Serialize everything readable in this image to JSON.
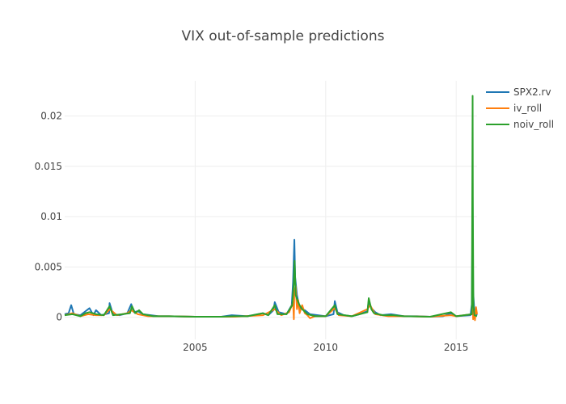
{
  "chart_data": {
    "type": "line",
    "title": "VIX out-of-sample predictions",
    "xlabel": "",
    "ylabel": "",
    "x_range": [
      2000.0,
      2015.8
    ],
    "ylim": [
      -0.0022,
      0.0235
    ],
    "x_ticks": [
      {
        "value": 2005,
        "label": "2005"
      },
      {
        "value": 2010,
        "label": "2010"
      },
      {
        "value": 2015,
        "label": "2015"
      }
    ],
    "y_ticks": [
      {
        "value": 0,
        "label": "0"
      },
      {
        "value": 0.005,
        "label": "0.005"
      },
      {
        "value": 0.01,
        "label": "0.01"
      },
      {
        "value": 0.015,
        "label": "0.015"
      },
      {
        "value": 0.02,
        "label": "0.02"
      }
    ],
    "grid": true,
    "legend_position": "top-right",
    "series": [
      {
        "name": "SPX2.rv",
        "color": "#1f77b4",
        "points": [
          [
            2000.0,
            0.0003
          ],
          [
            2000.15,
            0.0004
          ],
          [
            2000.25,
            0.0012
          ],
          [
            2000.35,
            0.0003
          ],
          [
            2000.6,
            0.0002
          ],
          [
            2000.75,
            0.0005
          ],
          [
            2000.95,
            0.0009
          ],
          [
            2001.1,
            0.0002
          ],
          [
            2001.2,
            0.0007
          ],
          [
            2001.4,
            0.0002
          ],
          [
            2001.7,
            0.0004
          ],
          [
            2001.72,
            0.0014
          ],
          [
            2001.85,
            0.0003
          ],
          [
            2002.1,
            0.0002
          ],
          [
            2002.4,
            0.0004
          ],
          [
            2002.55,
            0.0013
          ],
          [
            2002.65,
            0.0005
          ],
          [
            2002.8,
            0.0006
          ],
          [
            2003.0,
            0.0003
          ],
          [
            2003.3,
            0.0002
          ],
          [
            2003.6,
            0.0001
          ],
          [
            2004.0,
            0.0001
          ],
          [
            2005.0,
            5e-05
          ],
          [
            2006.0,
            5e-05
          ],
          [
            2006.4,
            0.0002
          ],
          [
            2007.0,
            0.0001
          ],
          [
            2007.2,
            0.0002
          ],
          [
            2007.6,
            0.0004
          ],
          [
            2007.8,
            0.0002
          ],
          [
            2008.0,
            0.0007
          ],
          [
            2008.05,
            0.0015
          ],
          [
            2008.2,
            0.0005
          ],
          [
            2008.5,
            0.0003
          ],
          [
            2008.7,
            0.0012
          ],
          [
            2008.75,
            0.0035
          ],
          [
            2008.8,
            0.0077
          ],
          [
            2008.83,
            0.004
          ],
          [
            2008.9,
            0.0022
          ],
          [
            2009.0,
            0.0009
          ],
          [
            2009.2,
            0.0007
          ],
          [
            2009.4,
            0.0003
          ],
          [
            2009.7,
            0.0002
          ],
          [
            2010.0,
            0.0001
          ],
          [
            2010.3,
            0.0003
          ],
          [
            2010.35,
            0.0016
          ],
          [
            2010.45,
            0.0005
          ],
          [
            2010.7,
            0.0002
          ],
          [
            2011.0,
            0.0001
          ],
          [
            2011.3,
            0.0003
          ],
          [
            2011.6,
            0.0006
          ],
          [
            2011.65,
            0.0016
          ],
          [
            2011.75,
            0.0009
          ],
          [
            2011.9,
            0.0005
          ],
          [
            2012.1,
            0.0002
          ],
          [
            2012.5,
            0.0003
          ],
          [
            2013.0,
            0.0001
          ],
          [
            2013.5,
            0.0001
          ],
          [
            2014.0,
            5e-05
          ],
          [
            2014.5,
            0.0001
          ],
          [
            2014.8,
            0.0004
          ],
          [
            2015.0,
            0.0001
          ],
          [
            2015.55,
            0.0002
          ],
          [
            2015.6,
            0.0013
          ],
          [
            2015.63,
            0.0119
          ],
          [
            2015.65,
            0.0025
          ],
          [
            2015.7,
            0.0005
          ],
          [
            2015.8,
            0.0002
          ]
        ]
      },
      {
        "name": "iv_roll",
        "color": "#ff7f0e",
        "points": [
          [
            2000.0,
            0.0002
          ],
          [
            2000.3,
            0.0004
          ],
          [
            2000.6,
            0.0001
          ],
          [
            2000.9,
            0.0003
          ],
          [
            2001.2,
            0.0002
          ],
          [
            2001.5,
            0.0002
          ],
          [
            2001.73,
            0.0008
          ],
          [
            2002.0,
            0.0002
          ],
          [
            2002.4,
            0.0004
          ],
          [
            2002.55,
            0.0007
          ],
          [
            2002.8,
            0.0003
          ],
          [
            2003.2,
            0.0001
          ],
          [
            2004.0,
            0.0001
          ],
          [
            2005.0,
            5e-05
          ],
          [
            2006.5,
            5e-05
          ],
          [
            2007.6,
            0.0002
          ],
          [
            2008.05,
            0.0008
          ],
          [
            2008.3,
            0.0002
          ],
          [
            2008.6,
            0.0005
          ],
          [
            2008.75,
            0.0015
          ],
          [
            2008.78,
            -0.0002
          ],
          [
            2008.8,
            0.0025
          ],
          [
            2008.85,
            0.0031
          ],
          [
            2008.9,
            0.0008
          ],
          [
            2008.95,
            0.0017
          ],
          [
            2009.0,
            0.0004
          ],
          [
            2009.1,
            0.0012
          ],
          [
            2009.2,
            0.0004
          ],
          [
            2009.3,
            0.0002
          ],
          [
            2009.4,
            -0.0001
          ],
          [
            2009.6,
            0.0001
          ],
          [
            2010.0,
            0.0001
          ],
          [
            2010.35,
            0.0009
          ],
          [
            2010.5,
            0.0002
          ],
          [
            2011.0,
            0.0001
          ],
          [
            2011.6,
            0.0008
          ],
          [
            2011.7,
            0.0012
          ],
          [
            2011.9,
            0.0003
          ],
          [
            2012.4,
            0.0001
          ],
          [
            2013.0,
            0.0001
          ],
          [
            2014.0,
            5e-05
          ],
          [
            2014.8,
            0.0002
          ],
          [
            2015.0,
            0.0001
          ],
          [
            2015.6,
            0.0003
          ],
          [
            2015.63,
            0.002
          ],
          [
            2015.65,
            -0.0002
          ],
          [
            2015.7,
            0.0006
          ],
          [
            2015.72,
            -0.0003
          ],
          [
            2015.76,
            0.001
          ],
          [
            2015.8,
            0.0003
          ]
        ]
      },
      {
        "name": "noiv_roll",
        "color": "#2ca02c",
        "points": [
          [
            2000.0,
            0.0002
          ],
          [
            2000.3,
            0.0003
          ],
          [
            2000.6,
            0.0001
          ],
          [
            2000.8,
            0.0004
          ],
          [
            2000.95,
            0.0005
          ],
          [
            2001.2,
            0.0003
          ],
          [
            2001.5,
            0.0002
          ],
          [
            2001.72,
            0.0011
          ],
          [
            2001.85,
            0.0002
          ],
          [
            2002.2,
            0.0003
          ],
          [
            2002.5,
            0.0004
          ],
          [
            2002.58,
            0.0011
          ],
          [
            2002.7,
            0.0004
          ],
          [
            2002.85,
            0.0007
          ],
          [
            2003.0,
            0.0003
          ],
          [
            2003.4,
            0.0001
          ],
          [
            2004.0,
            0.0001
          ],
          [
            2005.0,
            5e-05
          ],
          [
            2006.0,
            5e-05
          ],
          [
            2006.5,
            0.0001
          ],
          [
            2007.0,
            0.0001
          ],
          [
            2007.6,
            0.0004
          ],
          [
            2007.8,
            0.0002
          ],
          [
            2008.05,
            0.0012
          ],
          [
            2008.15,
            0.0003
          ],
          [
            2008.5,
            0.0003
          ],
          [
            2008.72,
            0.0012
          ],
          [
            2008.78,
            0.0035
          ],
          [
            2008.81,
            0.0056
          ],
          [
            2008.85,
            0.0022
          ],
          [
            2008.9,
            0.0018
          ],
          [
            2009.0,
            0.0012
          ],
          [
            2009.1,
            0.0008
          ],
          [
            2009.3,
            0.0003
          ],
          [
            2009.6,
            0.0001
          ],
          [
            2010.0,
            0.0001
          ],
          [
            2010.35,
            0.0012
          ],
          [
            2010.45,
            0.0003
          ],
          [
            2011.0,
            0.0001
          ],
          [
            2011.6,
            0.0005
          ],
          [
            2011.65,
            0.0019
          ],
          [
            2011.75,
            0.0008
          ],
          [
            2011.85,
            0.0004
          ],
          [
            2012.2,
            0.0002
          ],
          [
            2012.6,
            0.0002
          ],
          [
            2013.0,
            0.0001
          ],
          [
            2014.0,
            5e-05
          ],
          [
            2014.8,
            0.0005
          ],
          [
            2015.0,
            0.0001
          ],
          [
            2015.6,
            0.0003
          ],
          [
            2015.63,
            0.022
          ],
          [
            2015.64,
            0.0105
          ],
          [
            2015.66,
            0.0011
          ],
          [
            2015.7,
            0.0002
          ],
          [
            2015.8,
            0.0001
          ]
        ]
      }
    ]
  }
}
